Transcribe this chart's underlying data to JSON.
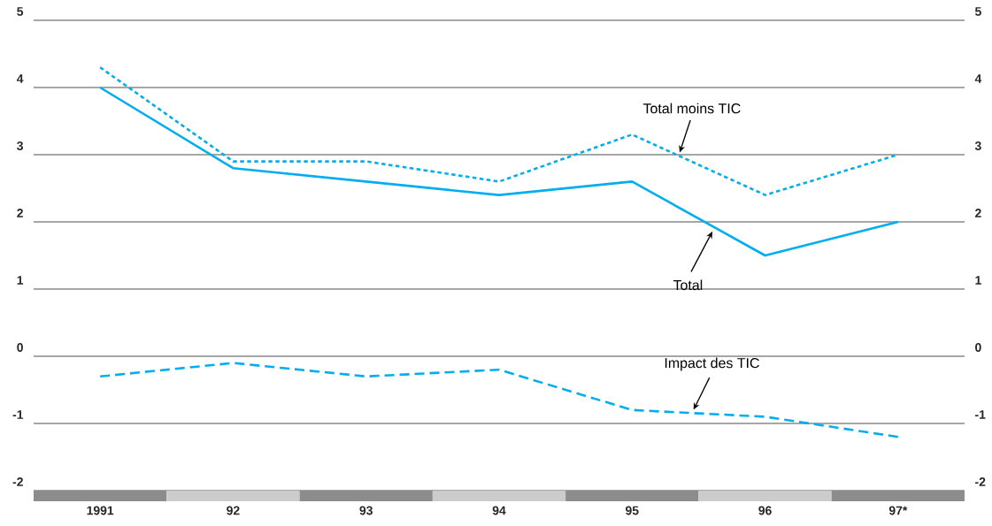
{
  "chart_data": {
    "type": "line",
    "categories": [
      "1991",
      "92",
      "93",
      "94",
      "95",
      "96",
      "97*"
    ],
    "series": [
      {
        "name": "Total",
        "color": "#00aeef",
        "line_style": "solid",
        "values": [
          4.0,
          2.8,
          2.6,
          2.4,
          2.6,
          1.5,
          2.0
        ]
      },
      {
        "name": "Total moins TIC",
        "color": "#00aeef",
        "line_style": "dotted",
        "values": [
          4.3,
          2.9,
          2.9,
          2.6,
          3.3,
          2.4,
          3.0
        ]
      },
      {
        "name": "Impact des TIC",
        "color": "#00aeef",
        "line_style": "dashed",
        "values": [
          -0.3,
          -0.1,
          -0.3,
          -0.2,
          -0.8,
          -0.9,
          -1.2
        ]
      }
    ],
    "ylim": [
      -2,
      5
    ],
    "yticks": [
      -2,
      -1,
      0,
      1,
      2,
      3,
      4,
      5
    ],
    "y2lim": [
      -2,
      5
    ],
    "y2ticks": [
      -2,
      -1,
      0,
      1,
      2,
      3,
      4,
      5
    ],
    "grid": "y",
    "legend": false,
    "marker": "none"
  }
}
